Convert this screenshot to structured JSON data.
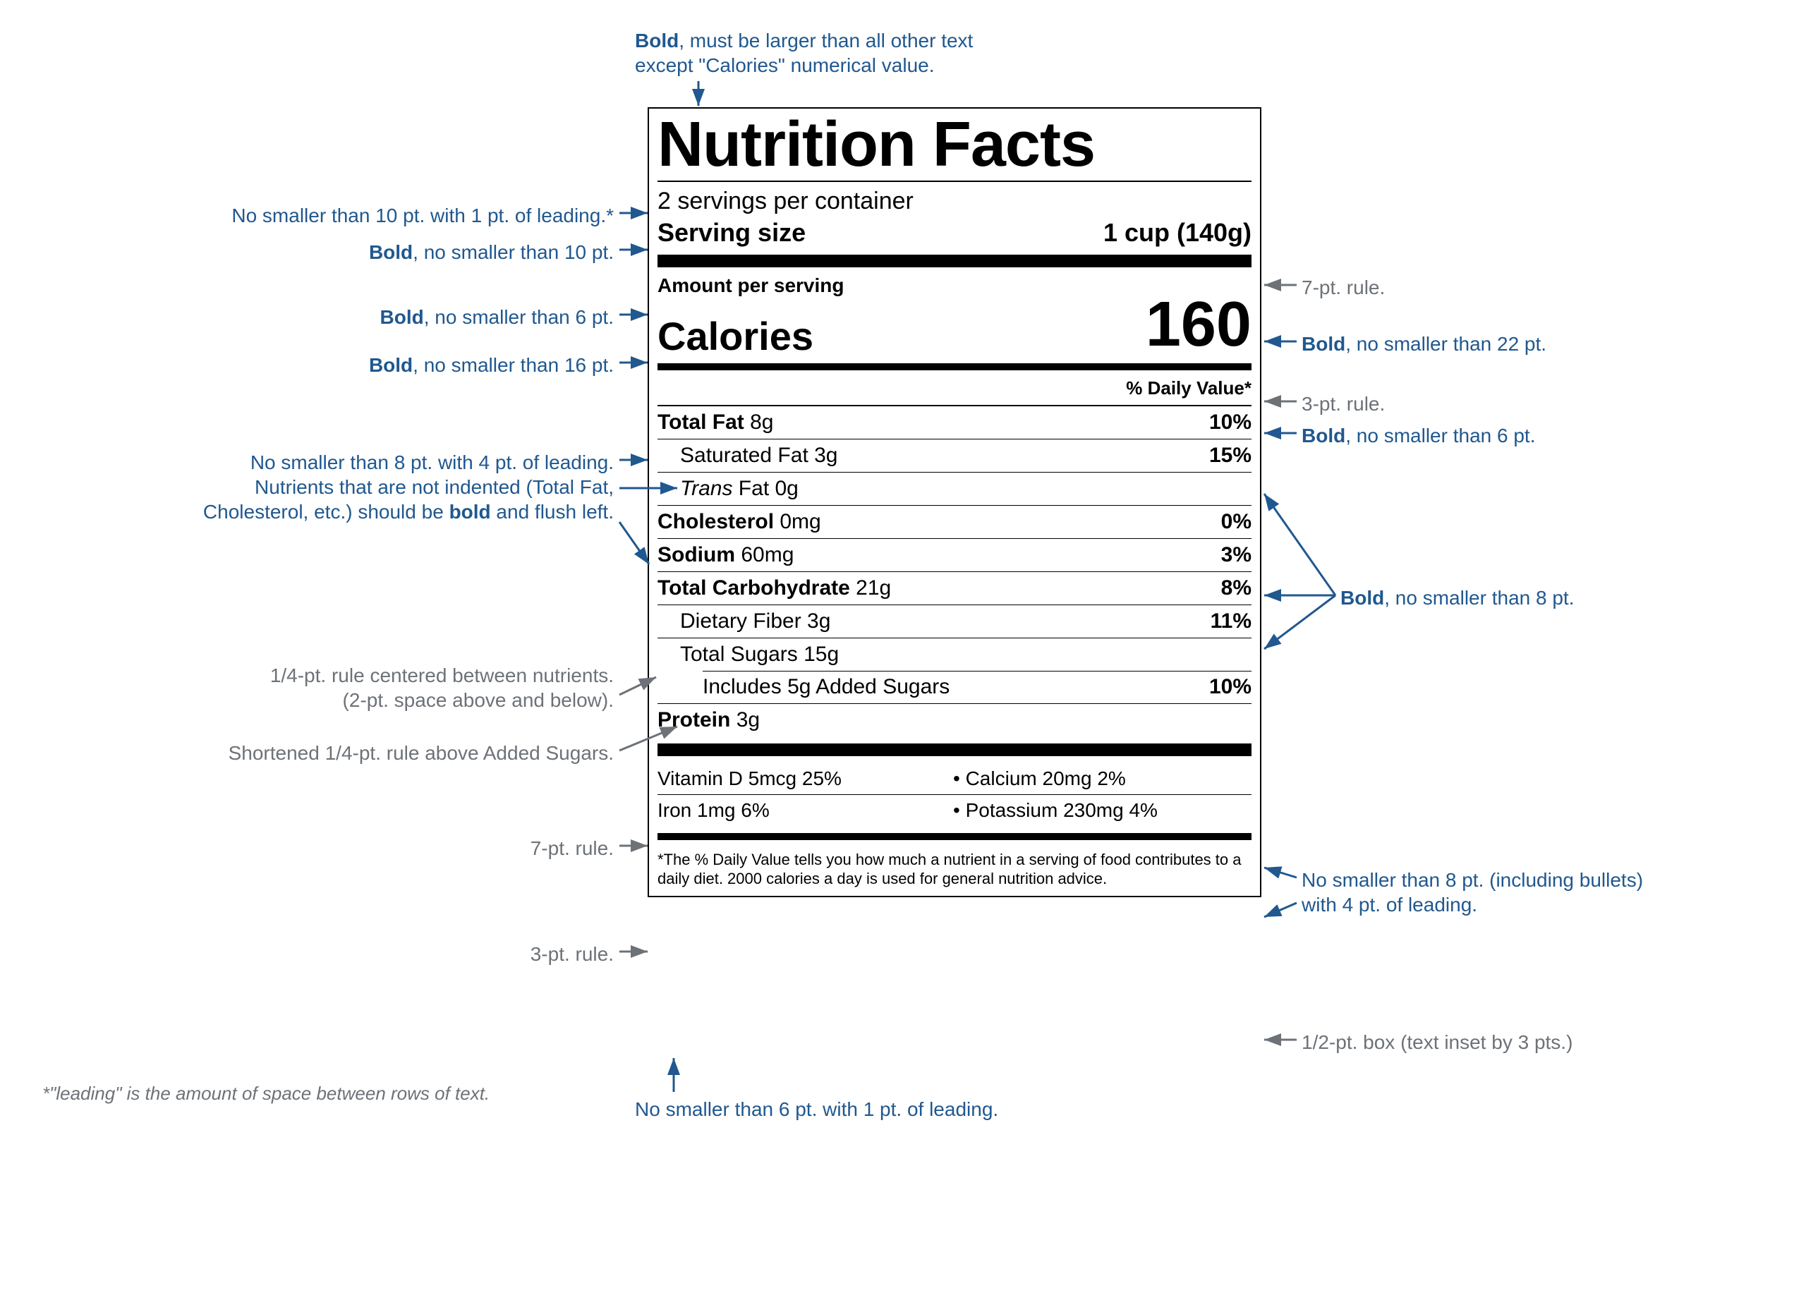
{
  "colors": {
    "ink": "#000000",
    "annotation_blue": "#20588f",
    "annotation_gray": "#6d7278",
    "background": "#ffffff"
  },
  "panel": {
    "title": "Nutrition Facts",
    "servings_per_container": "2 servings per container",
    "serving_size_label": "Serving size",
    "serving_size_value": "1 cup (140g)",
    "amount_per_serving": "Amount per serving",
    "calories_label": "Calories",
    "calories_value": "160",
    "dv_header": "% Daily Value*",
    "rows": [
      {
        "bold": true,
        "indent": 0,
        "name": "Total Fat",
        "amount": "8g",
        "pct": "10%"
      },
      {
        "bold": false,
        "indent": 1,
        "name": "Saturated Fat",
        "amount": "3g",
        "pct": "15%"
      },
      {
        "bold": false,
        "indent": 1,
        "name_html": "<i>Trans</i> Fat",
        "amount": "0g",
        "pct": "",
        "no_top_full": false
      },
      {
        "bold": true,
        "indent": 0,
        "name": "Cholesterol",
        "amount": "0mg",
        "pct": "0%"
      },
      {
        "bold": true,
        "indent": 0,
        "name": "Sodium",
        "amount": "60mg",
        "pct": "3%"
      },
      {
        "bold": true,
        "indent": 0,
        "name": "Total Carbohydrate",
        "amount": "21g",
        "pct": "8%"
      },
      {
        "bold": false,
        "indent": 1,
        "name": "Dietary Fiber",
        "amount": "3g",
        "pct": "11%"
      },
      {
        "bold": false,
        "indent": 1,
        "name": "Total Sugars",
        "amount": "15g",
        "pct": ""
      },
      {
        "bold": false,
        "indent": 2,
        "name": "Includes 5g Added Sugars",
        "amount": "",
        "pct": "10%",
        "short_rule": true
      },
      {
        "bold": true,
        "indent": 0,
        "name": "Protein",
        "amount": "3g",
        "pct": ""
      }
    ],
    "vitamins": [
      {
        "left": "Vitamin D 5mcg 25%",
        "right": "• Calcium 20mg 2%"
      },
      {
        "left": "Iron 1mg 6%",
        "right": "• Potassium 230mg 4%"
      }
    ],
    "footnote": "*The % Daily Value tells you how much a nutrient in a serving of food contributes to a daily diet. 2000 calories a day is used for general nutrition advice."
  },
  "annotations": {
    "top_title": "Bold, must be larger than all other text\nexcept \"Calories\" numerical value.",
    "left_servings": "No smaller than 10 pt. with 1 pt. of leading.*",
    "left_servsize": "Bold, no smaller than 10 pt.",
    "left_aps": "Bold, no smaller than 6 pt.",
    "left_calories": "Bold, no smaller than 16 pt.",
    "left_nutr_block": "No smaller than 8 pt. with 4 pt. of leading.\nNutrients that are not indented (Total Fat,\nCholesterol, etc.) should be bold and flush left.",
    "left_quarter_rule": "1/4-pt. rule centered between nutrients.\n(2-pt. space above and below).",
    "left_short_rule": "Shortened 1/4-pt. rule above Added Sugars.",
    "left_7pt": "7-pt. rule.",
    "left_3pt": "3-pt. rule.",
    "right_7pt": "7-pt. rule.",
    "right_22pt": "Bold, no smaller than 22 pt.",
    "right_3pt": "3-pt. rule.",
    "right_dv": "Bold, no smaller than 6 pt.",
    "right_8pt": "Bold, no smaller than 8 pt.",
    "right_vitamins": "No smaller than 8 pt. (including bullets)\nwith 4 pt. of leading.",
    "right_box": "1/2-pt. box (text inset by 3 pts.)",
    "bottom_footnote": "No smaller than 6 pt. with 1 pt. of leading.",
    "leading_def": "*\"leading\" is the amount of space between rows of text."
  }
}
